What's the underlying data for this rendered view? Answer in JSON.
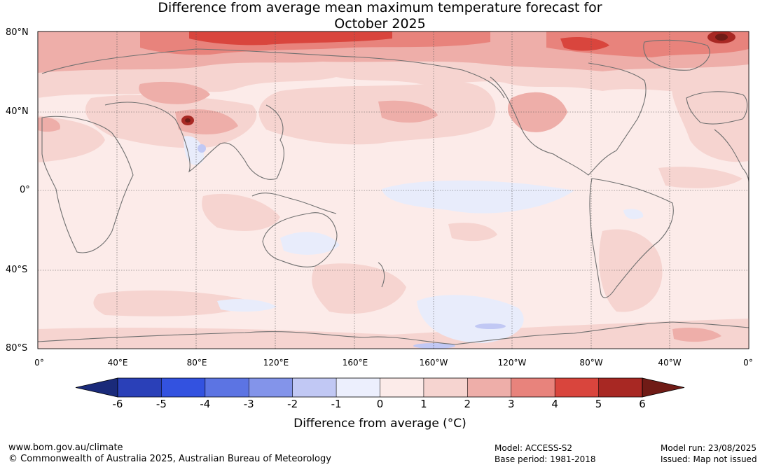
{
  "title": {
    "line1": "Difference from average mean maximum temperature forecast for",
    "line2": "October 2025"
  },
  "map": {
    "lat_labels": [
      "80°N",
      "40°N",
      "0°",
      "40°S",
      "80°S"
    ],
    "lat_values": [
      80,
      40,
      0,
      -40,
      -80
    ],
    "lon_labels": [
      "0°",
      "40°E",
      "80°E",
      "120°E",
      "160°E",
      "160°W",
      "120°W",
      "80°W",
      "40°W",
      "0°"
    ],
    "lon_values": [
      0,
      40,
      80,
      120,
      160,
      200,
      240,
      280,
      320,
      360
    ],
    "warm_regions_colors": {
      "level_0_1": "#fcebe9",
      "level_1_2": "#f6d4d0",
      "level_2_3": "#eeaea9",
      "level_3_4": "#e8837c",
      "level_4_5": "#d9453d",
      "level_5_6": "#a82823",
      "level_gt6": "#701b16"
    },
    "cool_region_color": "#e8ecfb",
    "coastline_color": "#707070"
  },
  "colorbar": {
    "ticks": [
      "-6",
      "-5",
      "-4",
      "-3",
      "-2",
      "-1",
      "0",
      "1",
      "2",
      "3",
      "4",
      "5",
      "6"
    ],
    "colors": [
      "#1a2a7a",
      "#2a40b8",
      "#3352e0",
      "#5c74e3",
      "#8394ea",
      "#c1c8f4",
      "#eceffd",
      "#fcebe9",
      "#f6d4d0",
      "#eeaea9",
      "#e8837c",
      "#d9453d",
      "#a82823",
      "#701b16"
    ],
    "label": "Difference from average (°C)"
  },
  "footer": {
    "url": "www.bom.gov.au/climate",
    "copyright": "© Commonwealth of Australia 2025, Australian Bureau of Meteorology",
    "model": "Model: ACCESS-S2",
    "base_period": "Base period: 1981-2018",
    "model_run": "Model run: 23/08/2025",
    "issued": "Issued: Map not issued"
  }
}
